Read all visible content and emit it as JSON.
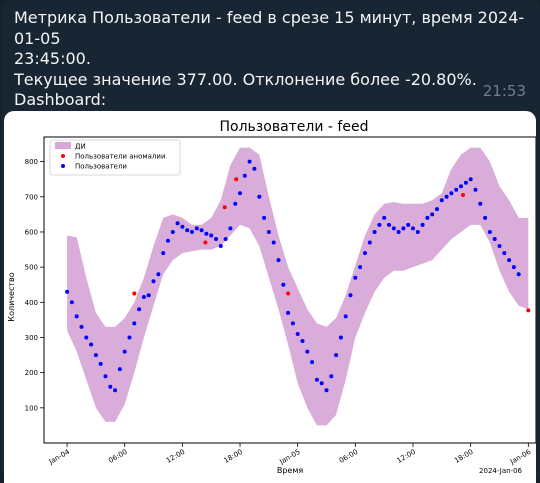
{
  "message": {
    "lines": [
      "Метрика Пользователи - feed в срезе 15 минут, время 2024-01-05",
      "23:45:00.",
      "Текущее значение 377.00. Отклонение более -20.80%.",
      "Dashboard:"
    ],
    "time": "21:53"
  },
  "chart_data": {
    "type": "scatter",
    "title": "Пользователи - feed",
    "xlabel": "Время",
    "ylabel": "Количество",
    "ylim": [
      0,
      870
    ],
    "yticks": [
      100,
      200,
      300,
      400,
      500,
      600,
      700,
      800
    ],
    "xlim": [
      -1.2,
      24.4
    ],
    "xticks": [
      {
        "x": 0,
        "label": "Jan-04"
      },
      {
        "x": 3,
        "label": "06:00"
      },
      {
        "x": 6,
        "label": "12:00"
      },
      {
        "x": 9,
        "label": "18:00"
      },
      {
        "x": 12,
        "label": "Jan-05"
      },
      {
        "x": 15,
        "label": "06:00"
      },
      {
        "x": 18,
        "label": "12:00"
      },
      {
        "x": 21,
        "label": "18:00"
      },
      {
        "x": 24,
        "label": "Jan-06"
      }
    ],
    "corner_label": "2024-Jan-06",
    "legend": {
      "position": "top-left",
      "entries": [
        {
          "label": "ДИ",
          "color": "#d8a8d8",
          "kind": "band"
        },
        {
          "label": "Пользователи аномалии",
          "color": "#ff0000",
          "kind": "point"
        },
        {
          "label": "Пользователи",
          "color": "#0000ff",
          "kind": "point"
        }
      ]
    },
    "band": {
      "upper": [
        [
          0,
          590
        ],
        [
          0.5,
          585
        ],
        [
          1,
          470
        ],
        [
          1.5,
          370
        ],
        [
          2,
          330
        ],
        [
          2.5,
          330
        ],
        [
          3,
          355
        ],
        [
          3.5,
          400
        ],
        [
          4,
          470
        ],
        [
          4.5,
          560
        ],
        [
          5,
          640
        ],
        [
          5.5,
          650
        ],
        [
          6,
          640
        ],
        [
          6.5,
          620
        ],
        [
          7,
          620
        ],
        [
          7.5,
          640
        ],
        [
          8,
          690
        ],
        [
          8.5,
          790
        ],
        [
          9,
          840
        ],
        [
          9.5,
          840
        ],
        [
          10,
          820
        ],
        [
          10.5,
          700
        ],
        [
          11,
          590
        ],
        [
          11.5,
          500
        ],
        [
          12,
          440
        ],
        [
          12.5,
          380
        ],
        [
          13,
          340
        ],
        [
          13.5,
          330
        ],
        [
          14,
          355
        ],
        [
          14.5,
          420
        ],
        [
          15,
          505
        ],
        [
          15.5,
          590
        ],
        [
          16,
          650
        ],
        [
          16.5,
          680
        ],
        [
          17,
          685
        ],
        [
          17.5,
          680
        ],
        [
          18,
          680
        ],
        [
          18.5,
          680
        ],
        [
          19,
          690
        ],
        [
          19.5,
          710
        ],
        [
          20,
          780
        ],
        [
          20.5,
          820
        ],
        [
          21,
          840
        ],
        [
          21.5,
          840
        ],
        [
          22,
          800
        ],
        [
          22.5,
          730
        ],
        [
          23,
          690
        ],
        [
          23.5,
          640
        ],
        [
          24,
          640
        ]
      ],
      "lower": [
        [
          0,
          320
        ],
        [
          0.5,
          260
        ],
        [
          1,
          180
        ],
        [
          1.5,
          100
        ],
        [
          2,
          60
        ],
        [
          2.5,
          60
        ],
        [
          3,
          110
        ],
        [
          3.5,
          200
        ],
        [
          4,
          300
        ],
        [
          4.5,
          390
        ],
        [
          5,
          480
        ],
        [
          5.5,
          520
        ],
        [
          6,
          540
        ],
        [
          6.5,
          545
        ],
        [
          7,
          550
        ],
        [
          7.5,
          550
        ],
        [
          8,
          560
        ],
        [
          8.5,
          590
        ],
        [
          9,
          620
        ],
        [
          9.5,
          610
        ],
        [
          10,
          560
        ],
        [
          10.5,
          470
        ],
        [
          11,
          380
        ],
        [
          11.5,
          280
        ],
        [
          12,
          170
        ],
        [
          12.5,
          100
        ],
        [
          13,
          50
        ],
        [
          13.5,
          50
        ],
        [
          14,
          80
        ],
        [
          14.5,
          180
        ],
        [
          15,
          300
        ],
        [
          15.5,
          370
        ],
        [
          16,
          430
        ],
        [
          16.5,
          470
        ],
        [
          17,
          490
        ],
        [
          17.5,
          490
        ],
        [
          18,
          500
        ],
        [
          18.5,
          510
        ],
        [
          19,
          520
        ],
        [
          19.5,
          550
        ],
        [
          20,
          580
        ],
        [
          20.5,
          600
        ],
        [
          21,
          620
        ],
        [
          21.5,
          620
        ],
        [
          22,
          570
        ],
        [
          22.5,
          490
        ],
        [
          23,
          430
        ],
        [
          23.5,
          390
        ],
        [
          24,
          380
        ]
      ]
    },
    "series": [
      {
        "name": "Пользователи",
        "color": "#0000ff",
        "points": [
          [
            0,
            430
          ],
          [
            0.25,
            400
          ],
          [
            0.5,
            360
          ],
          [
            0.75,
            330
          ],
          [
            1,
            300
          ],
          [
            1.25,
            280
          ],
          [
            1.5,
            250
          ],
          [
            1.75,
            225
          ],
          [
            2,
            190
          ],
          [
            2.25,
            160
          ],
          [
            2.5,
            150
          ],
          [
            2.75,
            210
          ],
          [
            3,
            260
          ],
          [
            3.25,
            300
          ],
          [
            3.5,
            340
          ],
          [
            3.75,
            380
          ],
          [
            4,
            415
          ],
          [
            4.25,
            420
          ],
          [
            4.5,
            460
          ],
          [
            4.75,
            480
          ],
          [
            5,
            540
          ],
          [
            5.25,
            575
          ],
          [
            5.5,
            600
          ],
          [
            5.75,
            625
          ],
          [
            6,
            615
          ],
          [
            6.25,
            605
          ],
          [
            6.5,
            600
          ],
          [
            6.75,
            610
          ],
          [
            7,
            605
          ],
          [
            7.25,
            595
          ],
          [
            7.5,
            590
          ],
          [
            7.75,
            580
          ],
          [
            8,
            560
          ],
          [
            8.25,
            580
          ],
          [
            8.5,
            610
          ],
          [
            8.75,
            680
          ],
          [
            9,
            710
          ],
          [
            9.25,
            760
          ],
          [
            9.5,
            800
          ],
          [
            9.75,
            780
          ],
          [
            10,
            700
          ],
          [
            10.25,
            640
          ],
          [
            10.5,
            600
          ],
          [
            10.75,
            570
          ],
          [
            11,
            520
          ],
          [
            11.25,
            450
          ],
          [
            11.5,
            370
          ],
          [
            11.75,
            340
          ],
          [
            12,
            310
          ],
          [
            12.25,
            290
          ],
          [
            12.5,
            260
          ],
          [
            12.75,
            230
          ],
          [
            13,
            180
          ],
          [
            13.25,
            170
          ],
          [
            13.5,
            150
          ],
          [
            13.75,
            190
          ],
          [
            14,
            250
          ],
          [
            14.25,
            300
          ],
          [
            14.5,
            360
          ],
          [
            14.75,
            420
          ],
          [
            15,
            470
          ],
          [
            15.25,
            500
          ],
          [
            15.5,
            540
          ],
          [
            15.75,
            570
          ],
          [
            16,
            600
          ],
          [
            16.25,
            620
          ],
          [
            16.5,
            640
          ],
          [
            16.75,
            620
          ],
          [
            17,
            610
          ],
          [
            17.25,
            600
          ],
          [
            17.5,
            610
          ],
          [
            17.75,
            620
          ],
          [
            18,
            610
          ],
          [
            18.25,
            600
          ],
          [
            18.5,
            620
          ],
          [
            18.75,
            640
          ],
          [
            19,
            650
          ],
          [
            19.25,
            665
          ],
          [
            19.5,
            690
          ],
          [
            19.75,
            700
          ],
          [
            20,
            710
          ],
          [
            20.25,
            720
          ],
          [
            20.5,
            730
          ],
          [
            20.75,
            740
          ],
          [
            21,
            750
          ],
          [
            21.25,
            720
          ],
          [
            21.5,
            680
          ],
          [
            21.75,
            640
          ],
          [
            22,
            600
          ],
          [
            22.25,
            580
          ],
          [
            22.5,
            560
          ],
          [
            22.75,
            540
          ],
          [
            23,
            520
          ],
          [
            23.25,
            500
          ],
          [
            23.5,
            480
          ]
        ]
      },
      {
        "name": "Пользователи аномалии",
        "color": "#ff0000",
        "points": [
          [
            3.5,
            425
          ],
          [
            7.2,
            570
          ],
          [
            8.2,
            670
          ],
          [
            8.8,
            750
          ],
          [
            11.5,
            425
          ],
          [
            20.6,
            705
          ],
          [
            24,
            377
          ]
        ]
      }
    ]
  }
}
